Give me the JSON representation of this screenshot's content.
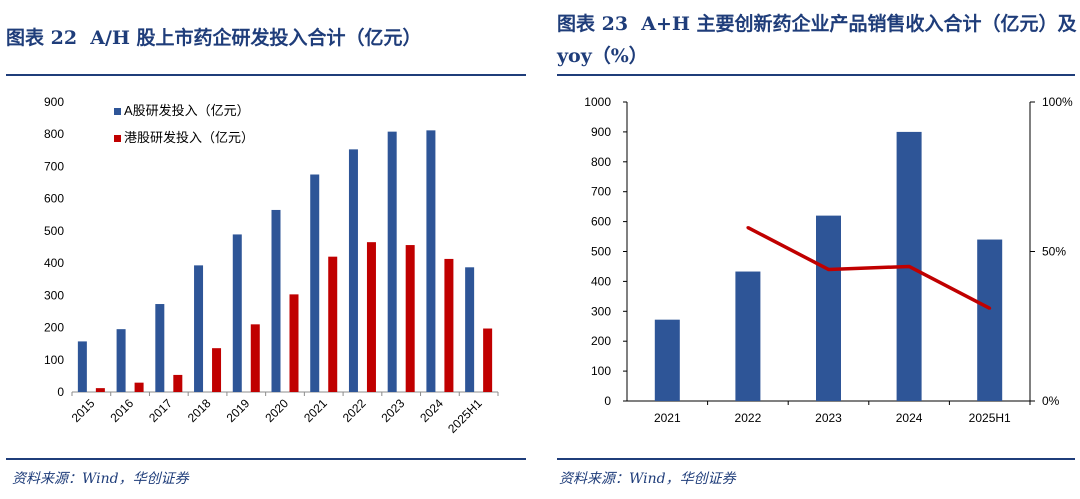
{
  "left": {
    "figure_label": "图表 22",
    "figure_title": "A/H 股上市药企研发投入合计（亿元）",
    "source": "资料来源：Wind，华创证券",
    "chart_data": {
      "type": "bar",
      "categories": [
        "2015",
        "2016",
        "2017",
        "2018",
        "2019",
        "2020",
        "2021",
        "2022",
        "2023",
        "2024",
        "2025H1"
      ],
      "series": [
        {
          "name": "A股研发投入（亿元）",
          "color": "#2e5597",
          "values": [
            157,
            195,
            273,
            393,
            489,
            565,
            675,
            753,
            808,
            812,
            387
          ]
        },
        {
          "name": "港股研发投入（亿元）",
          "color": "#c00000",
          "values": [
            12,
            29,
            53,
            136,
            210,
            303,
            420,
            465,
            456,
            413,
            197
          ]
        }
      ],
      "ylim": [
        0,
        900
      ],
      "yticks": [
        "0",
        "100",
        "200",
        "300",
        "400",
        "500",
        "600",
        "700",
        "800",
        "900"
      ],
      "legend_position": "top-left"
    }
  },
  "right": {
    "figure_label": "图表 23",
    "figure_title": "A+H 主要创新药企业产品销售收入合计（亿元）及 yoy（%）",
    "source": "资料来源：Wind，华创证券",
    "chart_data": {
      "type": "bar",
      "categories": [
        "2021",
        "2022",
        "2023",
        "2024",
        "2025H1"
      ],
      "series": [
        {
          "name": "产品销售收入合计（亿元）",
          "kind": "bar",
          "axis": "left",
          "color": "#2e5597",
          "values": [
            272,
            433,
            620,
            900,
            540
          ]
        },
        {
          "name": "yoy（%）",
          "kind": "line",
          "axis": "right",
          "color": "#c00000",
          "values": [
            null,
            58,
            44,
            45,
            31
          ]
        }
      ],
      "ylim": [
        0,
        1000
      ],
      "yticks": [
        "0",
        "100",
        "200",
        "300",
        "400",
        "500",
        "600",
        "700",
        "800",
        "900",
        "1000"
      ],
      "y2lim": [
        0,
        100
      ],
      "y2ticks": [
        "0%",
        "50%",
        "100%"
      ]
    }
  }
}
